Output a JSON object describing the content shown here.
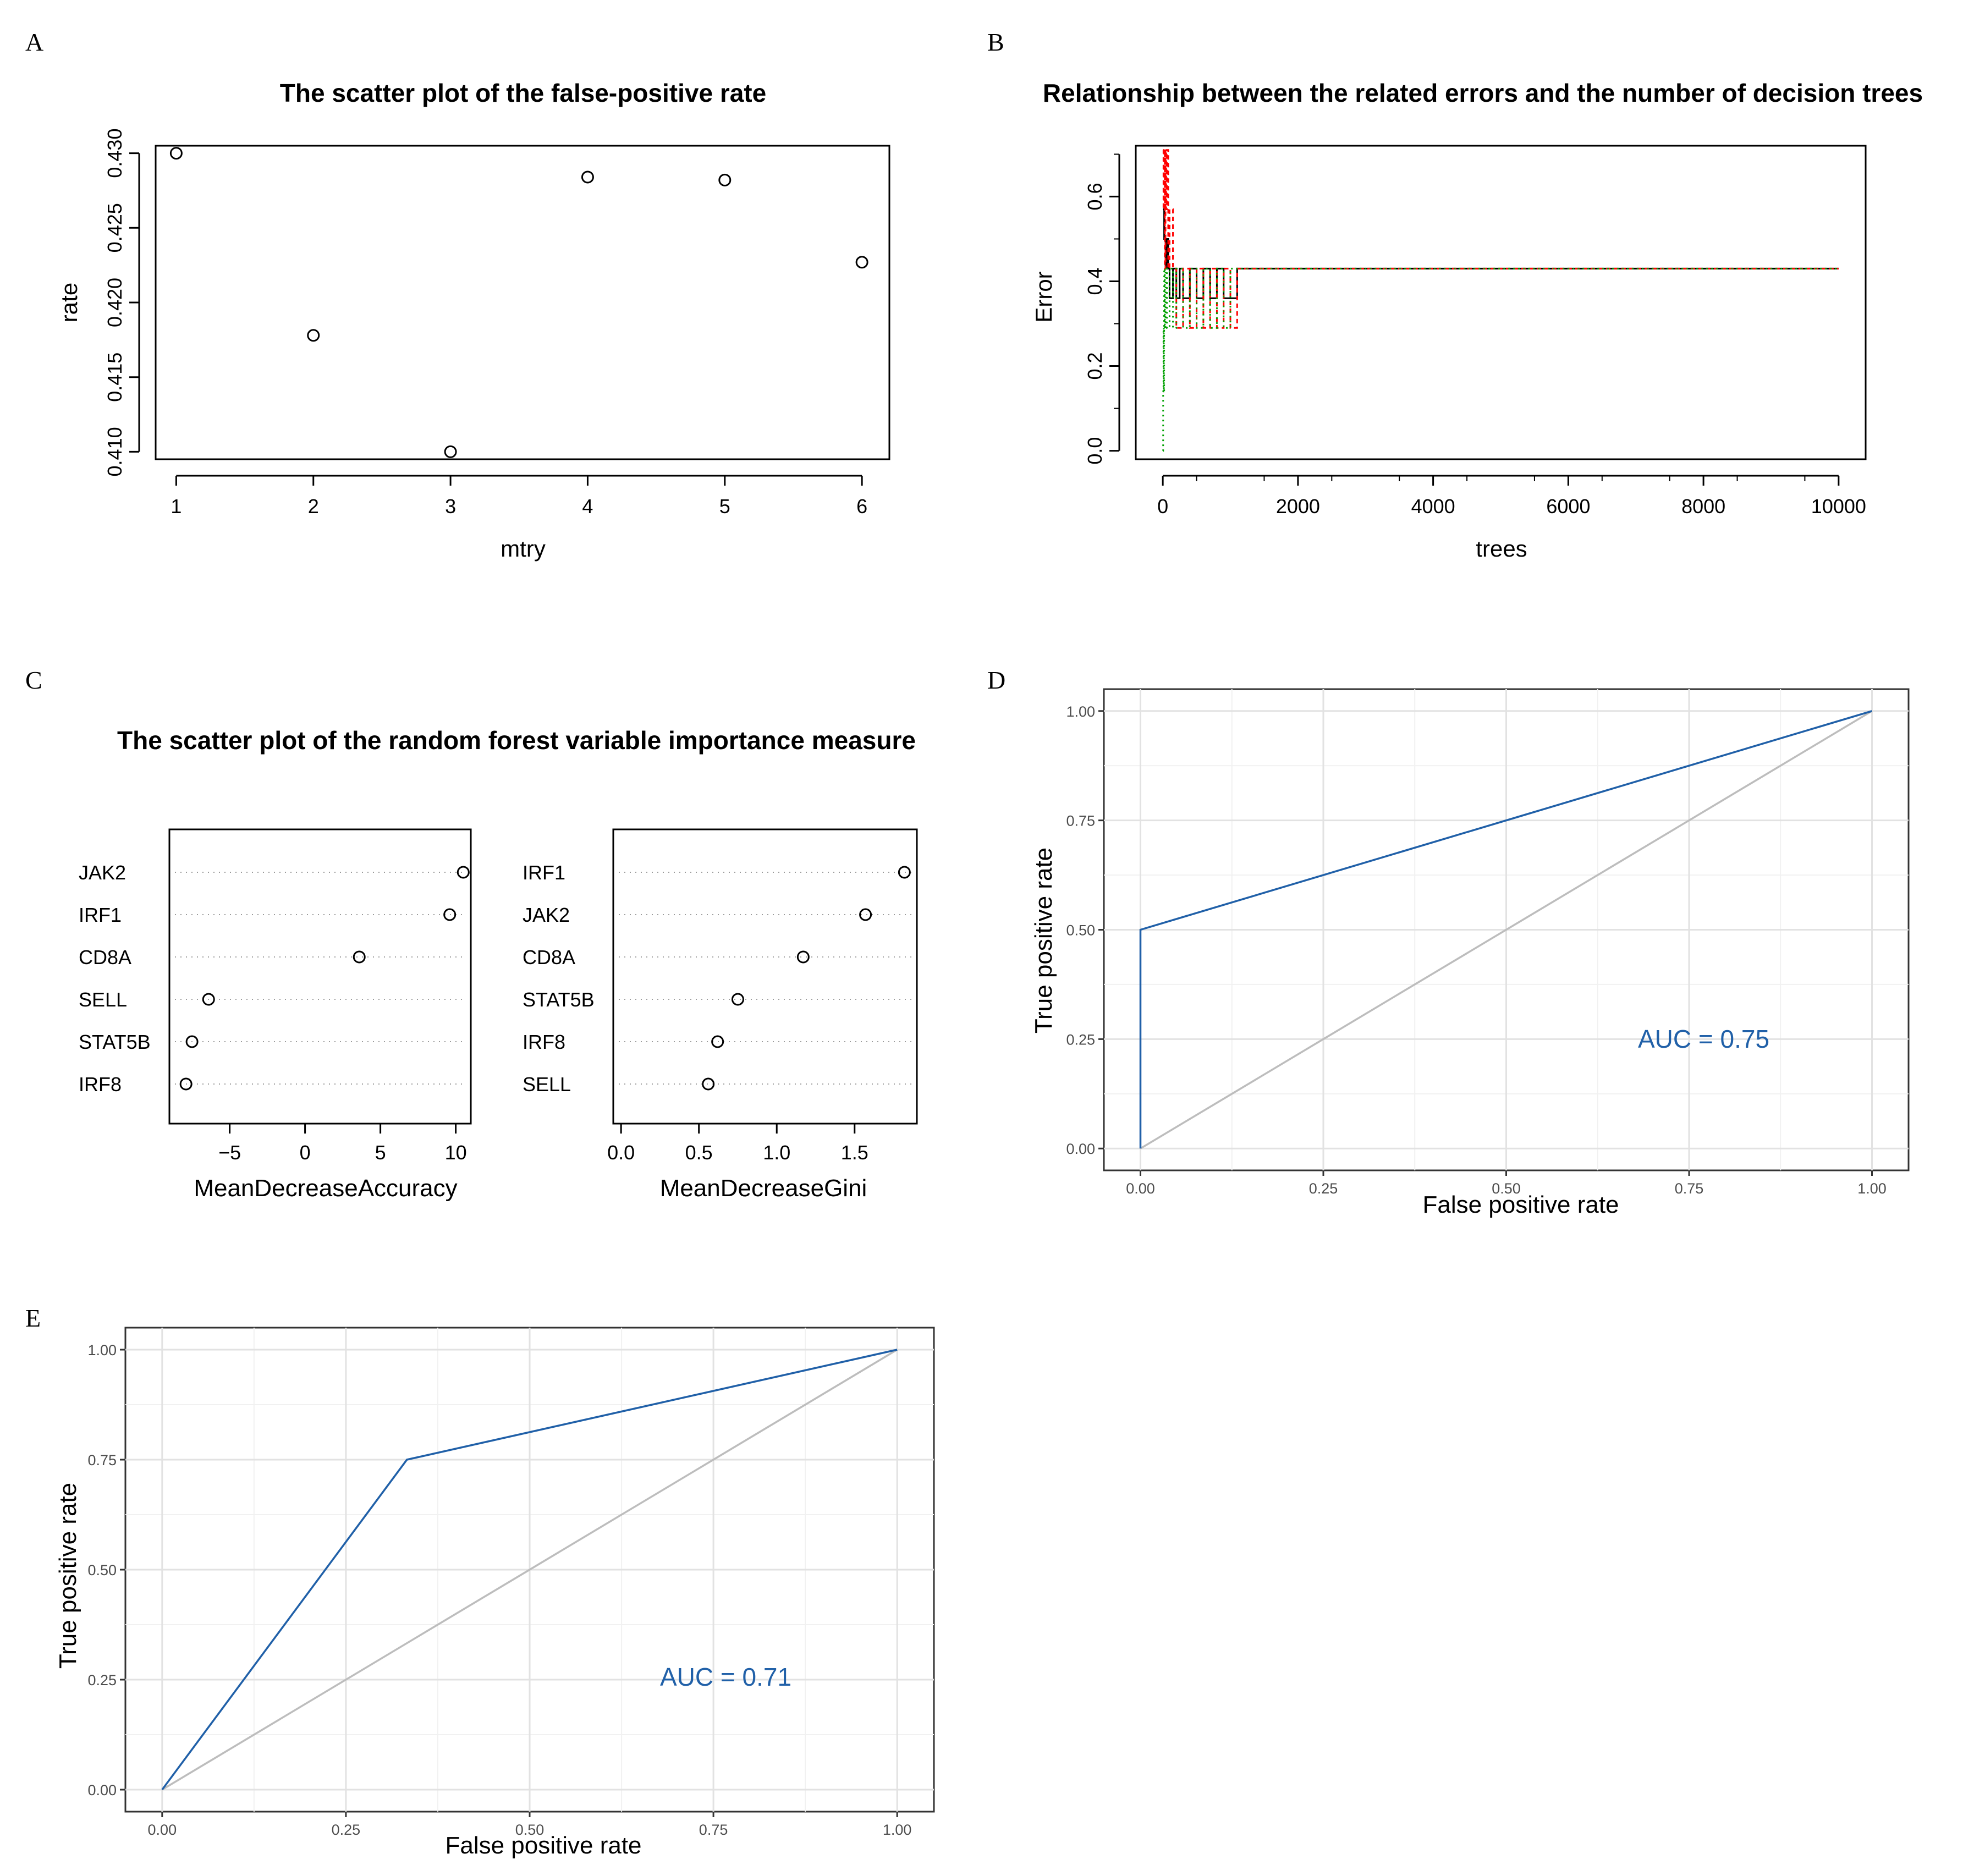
{
  "chart_data": [
    {
      "panel": "A",
      "type": "scatter",
      "title": "The scatter plot of the false-positive rate",
      "xlabel": "mtry",
      "ylabel": "rate",
      "xlim": [
        0.85,
        6.2
      ],
      "ylim": [
        0.4095,
        0.4305
      ],
      "xticks": [
        "1",
        "2",
        "3",
        "4",
        "5",
        "6"
      ],
      "yticks": [
        "0.410",
        "0.415",
        "0.420",
        "0.425",
        "0.430"
      ],
      "x": [
        1,
        2,
        3,
        4,
        5,
        6
      ],
      "y": [
        0.43,
        0.4178,
        0.41,
        0.4284,
        0.4282,
        0.4227
      ]
    },
    {
      "panel": "B",
      "type": "line",
      "title": "Relationship between the related errors and the number of decision trees",
      "xlabel": "trees",
      "ylabel": "Error",
      "xlim": [
        -400,
        10400
      ],
      "ylim": [
        -0.02,
        0.72
      ],
      "xticks": [
        "0",
        "2000",
        "4000",
        "6000",
        "8000",
        "10000"
      ],
      "yticks": [
        "0.0",
        "0.2",
        "0.4",
        "0.6"
      ],
      "series": [
        {
          "color": "#000000",
          "x": [
            1,
            20,
            40,
            60,
            80,
            100,
            150,
            200,
            250,
            300,
            400,
            500,
            600,
            700,
            800,
            900,
            1000,
            1100,
            10000
          ],
          "y": [
            0.57,
            0.5,
            0.43,
            0.5,
            0.43,
            0.36,
            0.43,
            0.36,
            0.43,
            0.36,
            0.43,
            0.36,
            0.43,
            0.36,
            0.43,
            0.36,
            0.36,
            0.43,
            0.43
          ]
        },
        {
          "color": "#ff0000",
          "dash": "8,6",
          "x": [
            1,
            10,
            20,
            30,
            40,
            50,
            60,
            80,
            100,
            150,
            200,
            300,
            400,
            500,
            600,
            700,
            800,
            900,
            1000,
            1100,
            10000
          ],
          "y": [
            0.71,
            0.57,
            0.71,
            0.43,
            0.71,
            0.57,
            0.71,
            0.43,
            0.57,
            0.43,
            0.29,
            0.43,
            0.29,
            0.43,
            0.29,
            0.43,
            0.29,
            0.43,
            0.29,
            0.43,
            0.43
          ]
        },
        {
          "color": "#00a000",
          "dash": "3,6",
          "x": [
            1,
            5,
            10,
            15,
            20,
            30,
            40,
            60,
            100,
            150,
            200,
            300,
            400,
            500,
            600,
            700,
            800,
            900,
            1000,
            1100,
            10000
          ],
          "y": [
            0.0,
            0.14,
            0.29,
            0.14,
            0.43,
            0.29,
            0.43,
            0.29,
            0.43,
            0.29,
            0.43,
            0.29,
            0.43,
            0.29,
            0.43,
            0.29,
            0.43,
            0.29,
            0.43,
            0.43,
            0.43
          ]
        }
      ]
    },
    {
      "panel": "C",
      "type": "scatter",
      "title": "The scatter plot of the random forest variable importance measure",
      "subplots": [
        {
          "xlabel": "MeanDecreaseAccuracy",
          "xlim": [
            -9,
            11
          ],
          "xticks": [
            "−5",
            "0",
            "5",
            "10"
          ],
          "xtick_values": [
            -5,
            0,
            5,
            10
          ],
          "categories": [
            "JAK2",
            "IRF1",
            "CD8A",
            "SELL",
            "STAT5B",
            "IRF8"
          ],
          "values": [
            10.5,
            9.6,
            3.6,
            -6.4,
            -7.5,
            -7.9
          ]
        },
        {
          "xlabel": "MeanDecreaseGini",
          "xlim": [
            -0.05,
            1.9
          ],
          "xticks": [
            "0.0",
            "0.5",
            "1.0",
            "1.5"
          ],
          "xtick_values": [
            0,
            0.5,
            1.0,
            1.5
          ],
          "categories": [
            "IRF1",
            "JAK2",
            "CD8A",
            "STAT5B",
            "IRF8",
            "SELL"
          ],
          "values": [
            1.82,
            1.57,
            1.17,
            0.75,
            0.62,
            0.56
          ]
        }
      ]
    },
    {
      "panel": "D",
      "type": "line",
      "xlabel": "False positive rate",
      "ylabel": "True positive rate",
      "xlim": [
        -0.05,
        1.05
      ],
      "ylim": [
        -0.05,
        1.05
      ],
      "xticks": [
        "0.00",
        "0.25",
        "0.50",
        "0.75",
        "1.00"
      ],
      "yticks": [
        "0.00",
        "0.25",
        "0.50",
        "0.75",
        "1.00"
      ],
      "annotation": "AUC =  0.75",
      "annotation_color": "#2060a8",
      "series": [
        {
          "color": "#2060a8",
          "x": [
            0,
            0,
            1
          ],
          "y": [
            0,
            0.5,
            1
          ]
        },
        {
          "color": "#bdbdbd",
          "x": [
            0,
            1
          ],
          "y": [
            0,
            1
          ]
        }
      ]
    },
    {
      "panel": "E",
      "type": "line",
      "xlabel": "False positive rate",
      "ylabel": "True positive rate",
      "xlim": [
        -0.05,
        1.05
      ],
      "ylim": [
        -0.05,
        1.05
      ],
      "xticks": [
        "0.00",
        "0.25",
        "0.50",
        "0.75",
        "1.00"
      ],
      "yticks": [
        "0.00",
        "0.25",
        "0.50",
        "0.75",
        "1.00"
      ],
      "annotation": "AUC =  0.71",
      "annotation_color": "#2060a8",
      "series": [
        {
          "color": "#2060a8",
          "x": [
            0,
            0.333,
            1
          ],
          "y": [
            0,
            0.75,
            1
          ]
        },
        {
          "color": "#bdbdbd",
          "x": [
            0,
            1
          ],
          "y": [
            0,
            1
          ]
        }
      ]
    }
  ],
  "panel_letters": [
    "A",
    "B",
    "C",
    "D",
    "E"
  ]
}
